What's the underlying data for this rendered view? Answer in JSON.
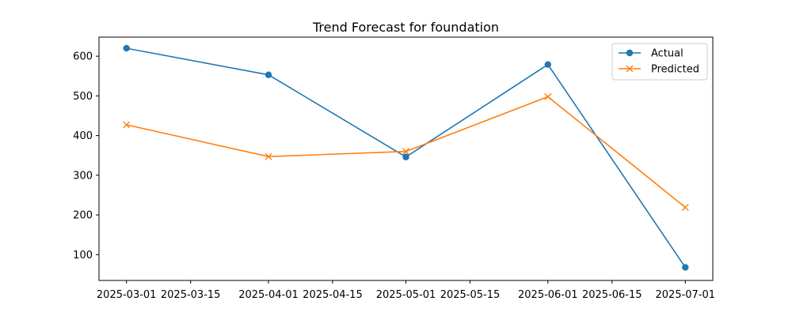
{
  "chart_data": {
    "type": "line",
    "title": "Trend Forecast for foundation",
    "xlabel": "",
    "ylabel": "",
    "x": [
      "2025-03-01",
      "2025-04-01",
      "2025-05-01",
      "2025-06-01",
      "2025-07-01"
    ],
    "xlim": [
      "2025-02-23",
      "2025-07-07"
    ],
    "ylim": [
      35,
      648
    ],
    "x_ticks": [
      "2025-03-01",
      "2025-03-15",
      "2025-04-01",
      "2025-04-15",
      "2025-05-01",
      "2025-05-15",
      "2025-06-01",
      "2025-06-15",
      "2025-07-01"
    ],
    "y_ticks": [
      100,
      200,
      300,
      400,
      500,
      600
    ],
    "series": [
      {
        "name": "Actual",
        "values": [
          620,
          553,
          346,
          579,
          68
        ],
        "color": "#1f77b4",
        "marker": "circle"
      },
      {
        "name": "Predicted",
        "values": [
          427,
          347,
          360,
          498,
          219
        ],
        "color": "#ff7f0e",
        "marker": "x"
      }
    ],
    "grid": false,
    "legend": "top-right"
  }
}
